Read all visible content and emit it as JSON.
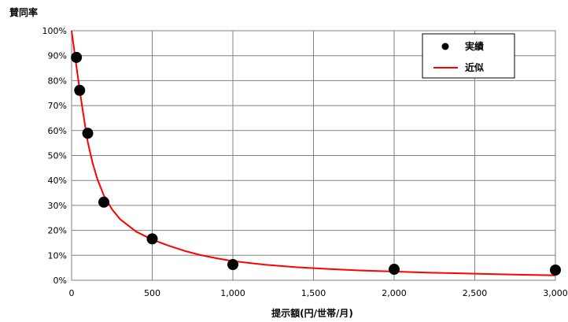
{
  "chart_data": {
    "type": "scatter",
    "title": "",
    "ylabel": "賛同率",
    "xlabel": "提示額(円/世帯/月)",
    "xlim": [
      0,
      3000
    ],
    "ylim": [
      0,
      1
    ],
    "x_ticks": [
      0,
      500,
      1000,
      1500,
      2000,
      2500,
      3000
    ],
    "x_tick_labels": [
      "0",
      "500",
      "1,000",
      "1,500",
      "2,000",
      "2,500",
      "3,000"
    ],
    "y_ticks": [
      0,
      0.1,
      0.2,
      0.3,
      0.4,
      0.5,
      0.6,
      0.7,
      0.8,
      0.9,
      1.0
    ],
    "y_tick_labels": [
      "0%",
      "10%",
      "20%",
      "30%",
      "40%",
      "50%",
      "60%",
      "70%",
      "80%",
      "90%",
      "100%"
    ],
    "grid": true,
    "legend_position": "top-right",
    "series": [
      {
        "name": "実績",
        "kind": "scatter",
        "color": "#000000",
        "points": [
          {
            "x": 30,
            "y": 0.893
          },
          {
            "x": 50,
            "y": 0.761
          },
          {
            "x": 100,
            "y": 0.589
          },
          {
            "x": 200,
            "y": 0.313
          },
          {
            "x": 500,
            "y": 0.166
          },
          {
            "x": 1000,
            "y": 0.063
          },
          {
            "x": 2000,
            "y": 0.044
          },
          {
            "x": 3000,
            "y": 0.041
          }
        ]
      },
      {
        "name": "近似",
        "kind": "line",
        "color": "#ff0000",
        "points": [
          {
            "x": 0,
            "y": 1.0
          },
          {
            "x": 20,
            "y": 0.905
          },
          {
            "x": 40,
            "y": 0.81
          },
          {
            "x": 60,
            "y": 0.72
          },
          {
            "x": 80,
            "y": 0.635
          },
          {
            "x": 100,
            "y": 0.555
          },
          {
            "x": 130,
            "y": 0.47
          },
          {
            "x": 160,
            "y": 0.405
          },
          {
            "x": 200,
            "y": 0.34
          },
          {
            "x": 250,
            "y": 0.285
          },
          {
            "x": 300,
            "y": 0.245
          },
          {
            "x": 400,
            "y": 0.195
          },
          {
            "x": 500,
            "y": 0.163
          },
          {
            "x": 600,
            "y": 0.139
          },
          {
            "x": 700,
            "y": 0.118
          },
          {
            "x": 800,
            "y": 0.101
          },
          {
            "x": 900,
            "y": 0.088
          },
          {
            "x": 1000,
            "y": 0.077
          },
          {
            "x": 1200,
            "y": 0.062
          },
          {
            "x": 1400,
            "y": 0.052
          },
          {
            "x": 1600,
            "y": 0.045
          },
          {
            "x": 1800,
            "y": 0.039
          },
          {
            "x": 2000,
            "y": 0.035
          },
          {
            "x": 2200,
            "y": 0.031
          },
          {
            "x": 2400,
            "y": 0.028
          },
          {
            "x": 2600,
            "y": 0.025
          },
          {
            "x": 2800,
            "y": 0.022
          },
          {
            "x": 3000,
            "y": 0.02
          }
        ]
      }
    ]
  }
}
